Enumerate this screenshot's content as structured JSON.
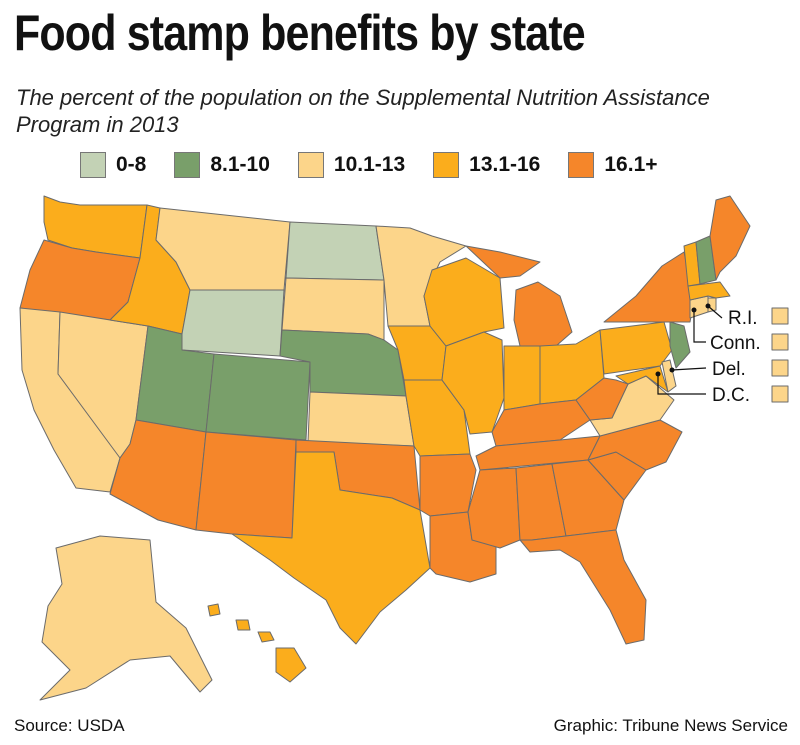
{
  "title": "Food stamp benefits by state",
  "subtitle": "The percent of the population on the Supplemental Nutrition Assistance Program in 2013",
  "colors": {
    "c0": "#c3d2b5",
    "c1": "#799f6a",
    "c2": "#fcd58a",
    "c3": "#fbad1c",
    "c4": "#f5862a"
  },
  "legend": [
    {
      "label": "0-8",
      "color": "#c3d2b5"
    },
    {
      "label": "8.1-10",
      "color": "#799f6a"
    },
    {
      "label": "10.1-13",
      "color": "#fcd58a"
    },
    {
      "label": "13.1-16",
      "color": "#fbad1c"
    },
    {
      "label": "16.1+",
      "color": "#f5862a"
    }
  ],
  "callouts": [
    {
      "label": "R.I.",
      "class": "c2"
    },
    {
      "label": "Conn.",
      "class": "c2"
    },
    {
      "label": "Del.",
      "class": "c2"
    },
    {
      "label": "D.C.",
      "class": "c2"
    }
  ],
  "source": "Source: USDA",
  "credit": "Graphic: Tribune News Service"
}
